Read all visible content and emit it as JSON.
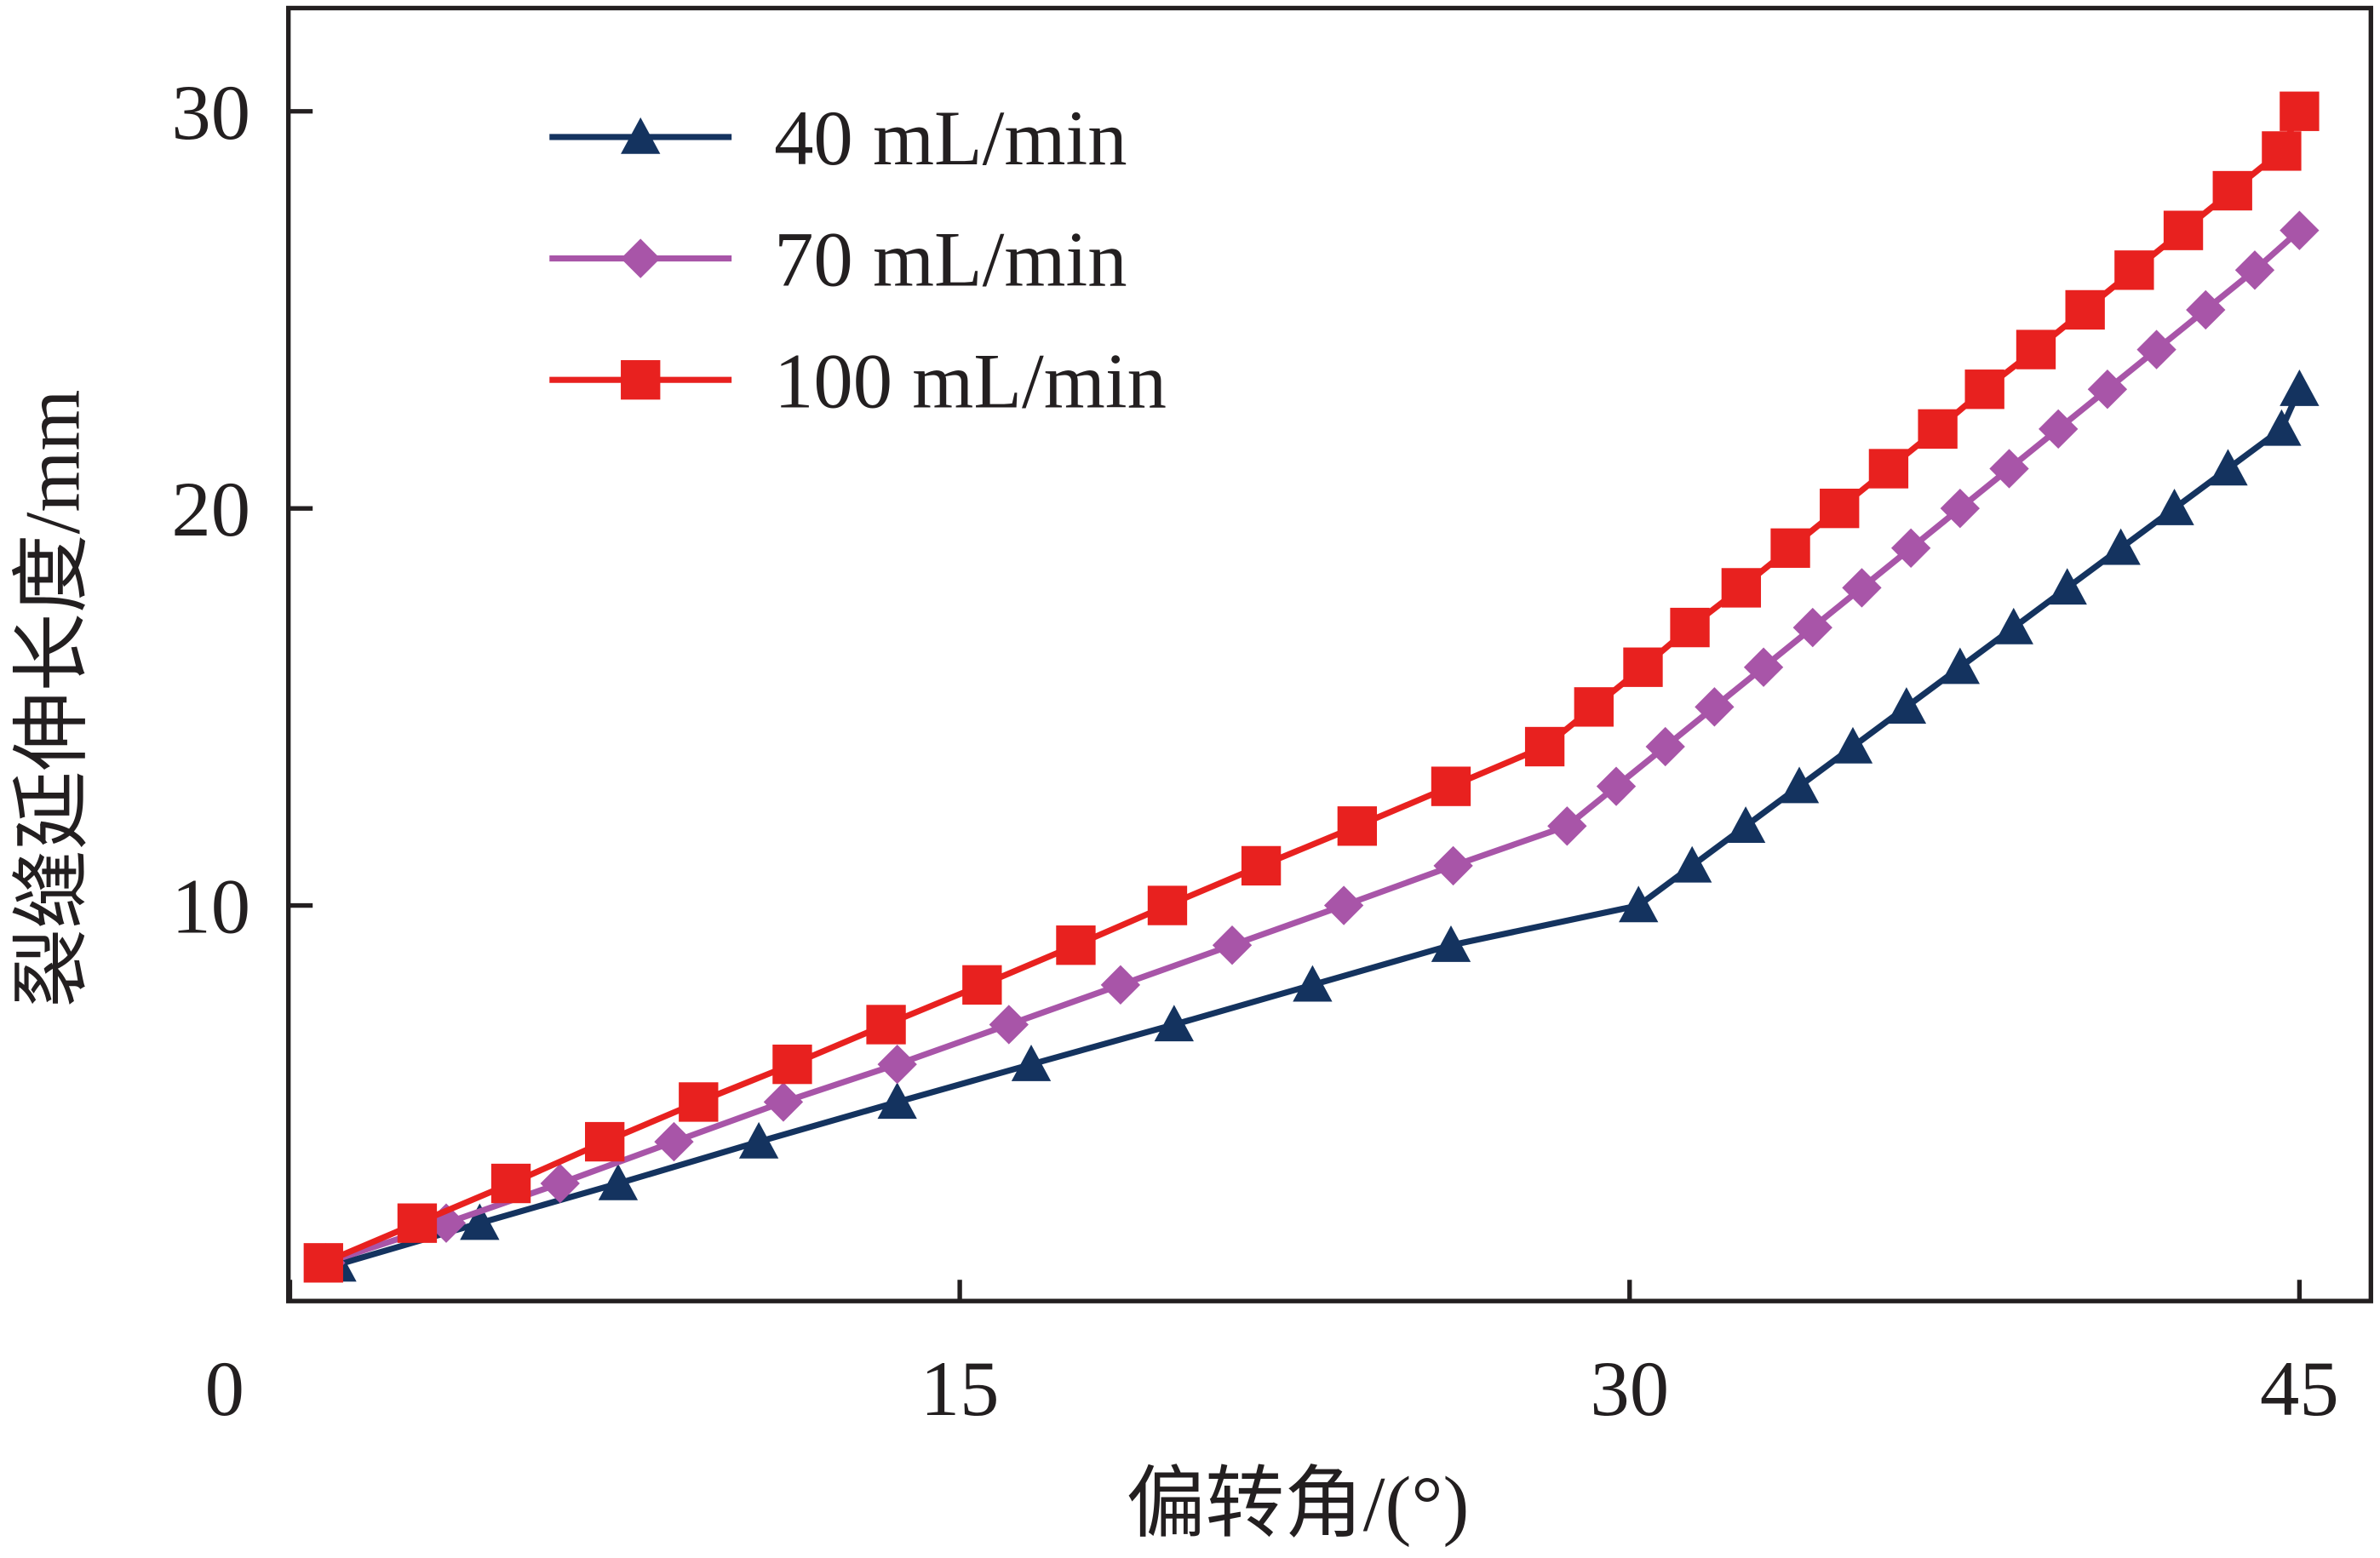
{
  "chart_data": {
    "type": "line",
    "xlabel": "偏转角/(°)",
    "ylabel": "裂缝延伸长度/mm",
    "xlim": [
      0,
      46.6
    ],
    "ylim": [
      0,
      32.6
    ],
    "xticks": [
      0,
      15,
      30,
      45
    ],
    "yticks": [
      10,
      20,
      30
    ],
    "legend": "upper left",
    "series": [
      {
        "name": "40 mL/min",
        "color": "#14335f",
        "marker": "triangle",
        "x": [
          1.05,
          4.25,
          7.35,
          10.5,
          13.6,
          16.6,
          19.8,
          22.9,
          26.0,
          30.2,
          31.4,
          32.6,
          33.8,
          35.0,
          36.2,
          37.4,
          38.6,
          39.8,
          41.0,
          42.2,
          43.4,
          44.6,
          45.0
        ],
        "values": [
          0.95,
          2.0,
          3.0,
          4.05,
          5.05,
          6.0,
          7.0,
          8.0,
          9.0,
          10.0,
          11.0,
          12.0,
          13.0,
          14.0,
          15.0,
          16.0,
          17.0,
          18.0,
          19.0,
          20.0,
          21.0,
          22.0,
          23.0
        ]
      },
      {
        "name": "70 mL/min",
        "color": "#a855a8",
        "marker": "diamond",
        "x": [
          0.8,
          3.5,
          6.05,
          8.6,
          11.05,
          13.6,
          16.1,
          18.6,
          21.1,
          23.6,
          26.05,
          28.6,
          29.7,
          30.8,
          31.9,
          33.0,
          34.1,
          35.2,
          36.3,
          37.4,
          38.5,
          39.6,
          40.7,
          41.8,
          42.9,
          44.0,
          45.0
        ],
        "values": [
          1.0,
          2.0,
          3.0,
          4.05,
          5.05,
          6.0,
          7.0,
          8.0,
          9.0,
          10.0,
          11.0,
          12.0,
          13.0,
          14.0,
          15.0,
          16.0,
          17.0,
          18.0,
          19.0,
          20.0,
          21.0,
          22.0,
          23.0,
          24.0,
          25.0,
          26.0,
          27.0
        ]
      },
      {
        "name": "100 mL/min",
        "color": "#e8211f",
        "marker": "square",
        "x": [
          0.75,
          2.85,
          4.95,
          7.05,
          9.15,
          11.25,
          13.35,
          15.5,
          17.6,
          19.65,
          21.75,
          23.9,
          26.0,
          28.1,
          29.2,
          30.3,
          31.35,
          32.5,
          33.6,
          34.7,
          35.8,
          36.9,
          37.95,
          39.1,
          40.2,
          41.3,
          42.4,
          43.5,
          44.6,
          45.0
        ],
        "values": [
          1.0,
          2.0,
          3.0,
          4.05,
          5.05,
          6.0,
          7.0,
          8.0,
          9.0,
          10.0,
          11.0,
          12.0,
          13.0,
          14.0,
          15.0,
          16.0,
          17.0,
          18.0,
          19.0,
          20.0,
          21.0,
          22.0,
          23.0,
          24.0,
          25.0,
          26.0,
          27.0,
          28.0,
          29.0,
          30.0
        ]
      }
    ]
  }
}
